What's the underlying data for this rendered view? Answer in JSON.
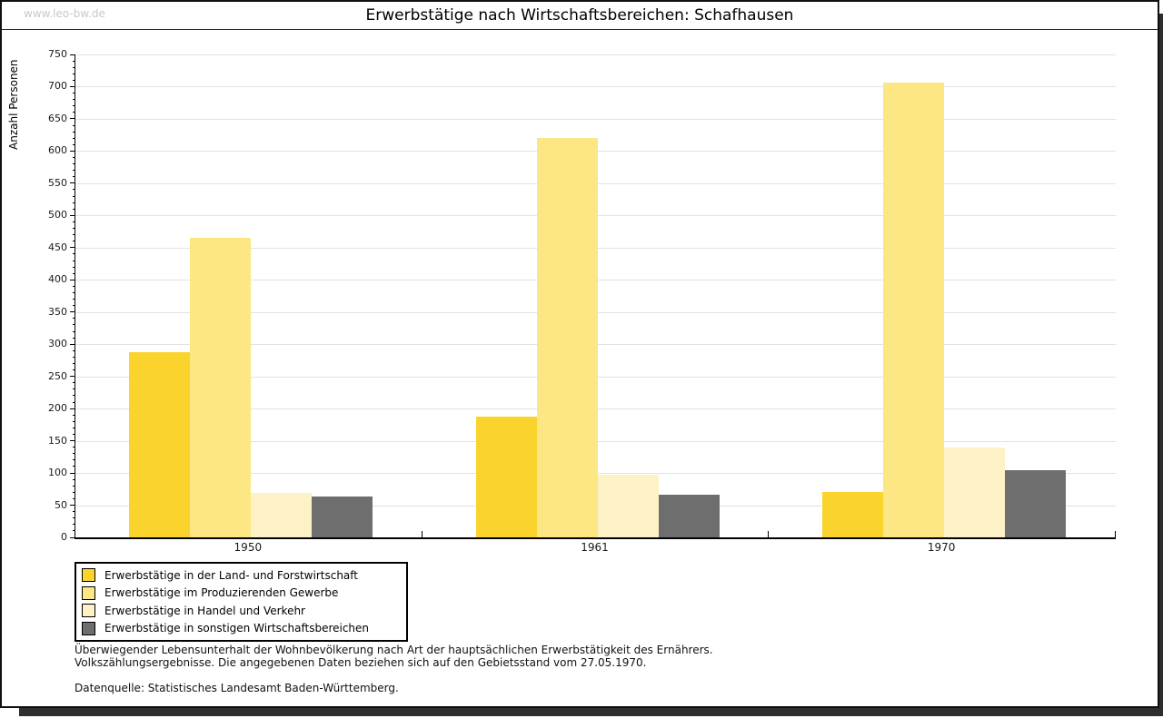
{
  "watermark": "www.leo-bw.de",
  "title": "Erwerbstätige nach Wirtschaftsbereichen: Schafhausen",
  "chart_data": {
    "type": "bar",
    "title": "Erwerbstätige nach Wirtschaftsbereichen: Schafhausen",
    "xlabel": "",
    "ylabel": "Anzahl Personen",
    "categories": [
      "1950",
      "1961",
      "1970"
    ],
    "series": [
      {
        "name": "Erwerbstätige in der Land- und Forstwirtschaft",
        "color": "#fbd32d",
        "values": [
          287,
          188,
          70
        ]
      },
      {
        "name": "Erwerbstätige im Produzierenden Gewerbe",
        "color": "#fce784",
        "values": [
          465,
          620,
          707
        ]
      },
      {
        "name": "Erwerbstätige in Handel und Verkehr",
        "color": "#fcf2c6",
        "values": [
          69,
          98,
          140
        ]
      },
      {
        "name": "Erwerbstätige in sonstigen Wirtschaftsbereichen",
        "color": "#6e6e6e",
        "values": [
          64,
          66,
          105
        ]
      }
    ],
    "ylim": [
      0,
      750
    ],
    "ytick_step": 50,
    "yminor_step": 10,
    "grid": "horizontal-major",
    "legend_position": "bottom-left",
    "axis_color": "#000000",
    "gridline_color": "#e2e2e2"
  },
  "footnotes": {
    "line1": "Überwiegender Lebensunterhalt der Wohnbevölkerung nach Art der hauptsächlichen Erwerbstätigkeit des Ernährers.",
    "line2": "Volkszählungsergebnisse. Die angegebenen Daten beziehen sich auf den Gebietsstand vom 27.05.1970.",
    "source": "Datenquelle: Statistisches Landesamt Baden-Württemberg."
  }
}
